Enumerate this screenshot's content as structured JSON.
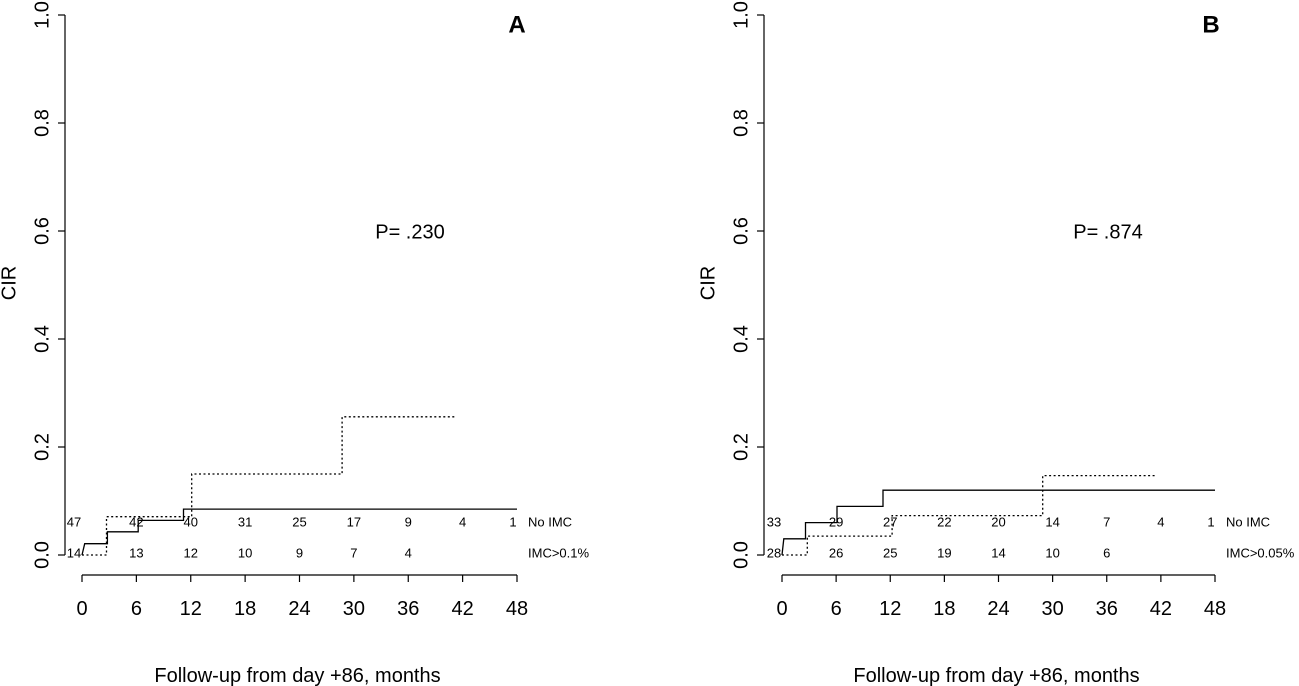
{
  "chart_data": [
    {
      "panel_label": "A",
      "type": "line",
      "step": true,
      "xlabel": "Follow-up from day +86, months",
      "ylabel": "CIR",
      "xlim": [
        0,
        48
      ],
      "ylim": [
        0,
        1
      ],
      "x_ticks": [
        "0",
        "6",
        "12",
        "18",
        "24",
        "30",
        "36",
        "42",
        "48"
      ],
      "y_ticks": [
        "0.0",
        "0.2",
        "0.4",
        "0.6",
        "0.8",
        "1.0"
      ],
      "annotation": "P= .230",
      "series": [
        {
          "line_style": "solid",
          "points": [
            [
              0,
              0
            ],
            [
              0.3,
              0.021
            ],
            [
              2.8,
              0.021
            ],
            [
              2.8,
              0.043
            ],
            [
              6.2,
              0.043
            ],
            [
              6.2,
              0.064
            ],
            [
              11.2,
              0.064
            ],
            [
              11.2,
              0.085
            ],
            [
              48,
              0.085
            ]
          ]
        },
        {
          "line_style": "dotted",
          "points": [
            [
              0,
              0
            ],
            [
              2.7,
              0
            ],
            [
              2.7,
              0.071
            ],
            [
              12.1,
              0.071
            ],
            [
              12.1,
              0.15
            ],
            [
              28.7,
              0.15
            ],
            [
              28.7,
              0.256
            ],
            [
              41.3,
              0.256
            ]
          ]
        }
      ],
      "risk_table": [
        {
          "label": "No IMC",
          "counts": [
            "47",
            "42",
            "40",
            "31",
            "25",
            "17",
            "9",
            "4",
            "1"
          ]
        },
        {
          "label": "IMC>0.1%",
          "counts": [
            "14",
            "13",
            "12",
            "10",
            "9",
            "7",
            "4",
            "",
            ""
          ]
        }
      ]
    },
    {
      "panel_label": "B",
      "type": "line",
      "step": true,
      "xlabel": "Follow-up from day +86, months",
      "ylabel": "CIR",
      "xlim": [
        0,
        48
      ],
      "ylim": [
        0,
        1
      ],
      "x_ticks": [
        "0",
        "6",
        "12",
        "18",
        "24",
        "30",
        "36",
        "42",
        "48"
      ],
      "y_ticks": [
        "0.0",
        "0.2",
        "0.4",
        "0.6",
        "0.8",
        "1.0"
      ],
      "annotation": "P= .874",
      "series": [
        {
          "line_style": "solid",
          "points": [
            [
              0,
              0
            ],
            [
              0.2,
              0.03
            ],
            [
              2.6,
              0.03
            ],
            [
              2.6,
              0.06
            ],
            [
              6.1,
              0.06
            ],
            [
              6.1,
              0.09
            ],
            [
              11.2,
              0.09
            ],
            [
              11.2,
              0.12
            ],
            [
              48,
              0.12
            ]
          ]
        },
        {
          "line_style": "dotted",
          "points": [
            [
              0,
              0
            ],
            [
              2.8,
              0
            ],
            [
              2.8,
              0.035
            ],
            [
              12.2,
              0.035
            ],
            [
              12.2,
              0.073
            ],
            [
              28.9,
              0.073
            ],
            [
              28.9,
              0.147
            ],
            [
              41.3,
              0.147
            ]
          ]
        }
      ],
      "risk_table": [
        {
          "label": "No IMC",
          "counts": [
            "33",
            "29",
            "27",
            "22",
            "20",
            "14",
            "7",
            "4",
            "1"
          ]
        },
        {
          "label": "IMC>0.05%",
          "counts": [
            "28",
            "26",
            "25",
            "19",
            "14",
            "10",
            "6",
            "",
            ""
          ]
        }
      ]
    }
  ]
}
